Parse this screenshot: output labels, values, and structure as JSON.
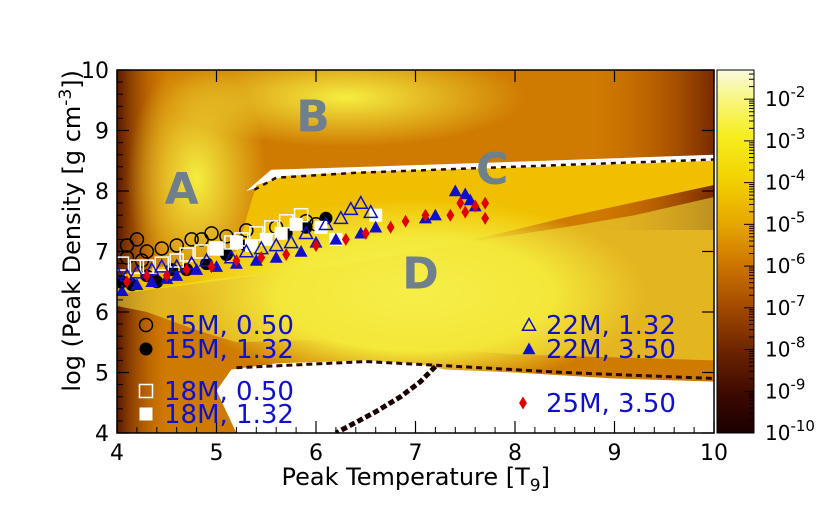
{
  "chart_data": {
    "type": "scatter",
    "background": "heatmap",
    "xlabel_prefix": "Peak Temperature [T",
    "xlabel_sub": "9",
    "xlabel_suffix": "]",
    "ylabel_prefix": "log (Peak Density  [g cm",
    "ylabel_sup": "-3",
    "ylabel_suffix": "])",
    "xlim": [
      4,
      10
    ],
    "ylim": [
      4,
      10
    ],
    "x_ticks": [
      "4",
      "5",
      "6",
      "7",
      "8",
      "9",
      "10"
    ],
    "y_ticks": [
      "4",
      "5",
      "6",
      "7",
      "8",
      "9",
      "10"
    ],
    "colorbar": {
      "scale": "log",
      "range": [
        1e-10,
        0.05
      ],
      "tick_bases": [
        "10",
        "10",
        "10",
        "10",
        "10",
        "10",
        "10",
        "10",
        "10"
      ],
      "tick_exps": [
        "-2",
        "-3",
        "-4",
        "-5",
        "-6",
        "-7",
        "-8",
        "-9",
        "-10"
      ],
      "tick_values": [
        -2,
        -3,
        -4,
        -5,
        -6,
        -7,
        -8,
        -9,
        -10
      ],
      "colors": [
        "#1a0000",
        "#4a1000",
        "#8a3a00",
        "#c06000",
        "#de9000",
        "#f0c000",
        "#f5e000",
        "#f7f730",
        "#fafad0"
      ]
    },
    "regions": [
      {
        "label": "A",
        "x": 4.65,
        "y": 8.05
      },
      {
        "label": "B",
        "x": 5.97,
        "y": 9.25
      },
      {
        "label": "C",
        "x": 7.77,
        "y": 8.38
      },
      {
        "label": "D",
        "x": 7.05,
        "y": 6.65
      }
    ],
    "series": [
      {
        "name": "15M, 0.50",
        "marker": "circle-open",
        "color": "#000000",
        "points": [
          [
            4.1,
            6.9
          ],
          [
            4.1,
            7.1
          ],
          [
            4.2,
            7.2
          ],
          [
            4.25,
            6.85
          ],
          [
            4.3,
            7.0
          ],
          [
            4.45,
            7.05
          ],
          [
            4.6,
            7.1
          ],
          [
            4.75,
            7.2
          ],
          [
            4.85,
            7.2
          ],
          [
            4.95,
            7.3
          ],
          [
            5.1,
            7.25
          ],
          [
            5.3,
            7.35
          ],
          [
            5.6,
            7.4
          ],
          [
            5.9,
            7.5
          ],
          [
            6.0,
            7.45
          ]
        ]
      },
      {
        "name": "15M, 1.32",
        "marker": "circle-filled",
        "color": "#000000",
        "points": [
          [
            4.05,
            6.5
          ],
          [
            4.15,
            6.45
          ],
          [
            4.3,
            6.6
          ],
          [
            4.4,
            6.5
          ],
          [
            4.55,
            6.7
          ],
          [
            4.7,
            6.7
          ],
          [
            4.9,
            6.8
          ],
          [
            5.1,
            6.95
          ],
          [
            5.3,
            7.1
          ],
          [
            5.5,
            7.2
          ],
          [
            5.7,
            7.3
          ],
          [
            5.9,
            7.4
          ],
          [
            6.1,
            7.55
          ]
        ]
      },
      {
        "name": "18M, 0.50",
        "marker": "square-open",
        "color": "#ffffff",
        "points": [
          [
            4.05,
            6.8
          ],
          [
            4.2,
            6.75
          ],
          [
            4.3,
            6.75
          ],
          [
            4.45,
            6.8
          ],
          [
            4.6,
            6.85
          ],
          [
            4.7,
            6.95
          ],
          [
            4.85,
            7.0
          ],
          [
            5.0,
            7.05
          ],
          [
            5.15,
            7.15
          ],
          [
            5.25,
            7.2
          ],
          [
            5.4,
            7.3
          ],
          [
            5.55,
            7.4
          ],
          [
            5.7,
            7.5
          ],
          [
            5.85,
            7.6
          ]
        ]
      },
      {
        "name": "18M, 1.32",
        "marker": "square-filled",
        "color": "#ffffff",
        "points": [
          [
            5.0,
            7.05
          ],
          [
            5.2,
            7.15
          ],
          [
            5.35,
            7.1
          ],
          [
            5.5,
            7.2
          ],
          [
            5.65,
            7.3
          ],
          [
            5.8,
            7.45
          ],
          [
            6.05,
            7.4
          ],
          [
            6.2,
            7.2
          ],
          [
            6.6,
            7.6
          ]
        ]
      },
      {
        "name": "22M, 1.32",
        "marker": "triangle-open",
        "color": "#1010cc",
        "points": [
          [
            4.0,
            6.65
          ],
          [
            4.1,
            6.6
          ],
          [
            4.2,
            6.65
          ],
          [
            4.35,
            6.7
          ],
          [
            4.45,
            6.75
          ],
          [
            4.6,
            6.75
          ],
          [
            4.75,
            6.8
          ],
          [
            4.9,
            6.85
          ],
          [
            5.15,
            6.9
          ],
          [
            5.3,
            7.0
          ],
          [
            5.45,
            7.05
          ],
          [
            5.6,
            7.1
          ],
          [
            5.75,
            7.15
          ],
          [
            5.9,
            7.3
          ],
          [
            6.1,
            7.45
          ],
          [
            6.25,
            7.55
          ],
          [
            6.35,
            7.7
          ],
          [
            6.45,
            7.8
          ],
          [
            6.55,
            7.65
          ]
        ]
      },
      {
        "name": "22M, 3.50",
        "marker": "triangle-filled",
        "color": "#1010cc",
        "points": [
          [
            4.05,
            6.35
          ],
          [
            4.2,
            6.45
          ],
          [
            4.35,
            6.5
          ],
          [
            4.5,
            6.55
          ],
          [
            4.6,
            6.6
          ],
          [
            4.8,
            6.7
          ],
          [
            5.0,
            6.75
          ],
          [
            5.2,
            6.8
          ],
          [
            5.4,
            6.85
          ],
          [
            5.6,
            6.9
          ],
          [
            5.85,
            7.0
          ],
          [
            6.0,
            7.15
          ],
          [
            6.2,
            7.2
          ],
          [
            6.45,
            7.3
          ],
          [
            6.6,
            7.4
          ],
          [
            7.1,
            7.55
          ],
          [
            7.2,
            7.6
          ],
          [
            7.4,
            8.0
          ],
          [
            7.5,
            7.95
          ],
          [
            7.55,
            7.85
          ],
          [
            7.6,
            7.75
          ]
        ]
      },
      {
        "name": "25M, 3.50",
        "marker": "diamond",
        "color": "#e00000",
        "points": [
          [
            4.1,
            6.5
          ],
          [
            4.3,
            6.6
          ],
          [
            4.5,
            6.6
          ],
          [
            4.7,
            6.7
          ],
          [
            4.95,
            6.75
          ],
          [
            5.2,
            6.85
          ],
          [
            5.45,
            6.9
          ],
          [
            5.7,
            6.95
          ],
          [
            6.0,
            7.1
          ],
          [
            6.3,
            7.2
          ],
          [
            6.5,
            7.3
          ],
          [
            6.75,
            7.4
          ],
          [
            6.9,
            7.5
          ],
          [
            7.1,
            7.6
          ],
          [
            7.35,
            7.6
          ],
          [
            7.45,
            7.8
          ],
          [
            7.5,
            7.65
          ],
          [
            7.6,
            7.75
          ],
          [
            7.7,
            7.8
          ],
          [
            7.7,
            7.55
          ]
        ]
      }
    ],
    "legend": [
      {
        "label": "15M, 0.50",
        "series": 0
      },
      {
        "label": "15M, 1.32",
        "series": 1
      },
      {
        "label": "18M, 0.50",
        "series": 2
      },
      {
        "label": "18M, 1.32",
        "series": 3
      },
      {
        "label": "22M, 1.32",
        "series": 4
      },
      {
        "label": "22M, 3.50",
        "series": 5
      },
      {
        "label": "25M, 3.50",
        "series": 6
      }
    ]
  }
}
